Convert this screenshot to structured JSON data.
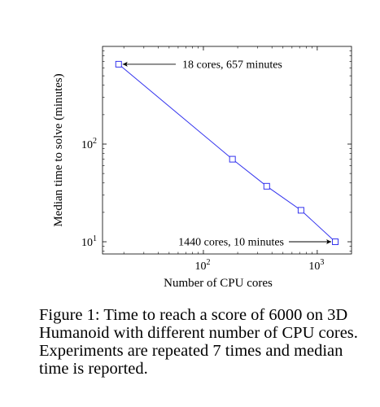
{
  "chart_data": {
    "type": "line",
    "xlabel": "Number of CPU cores",
    "ylabel": "Median time to solve (minutes)",
    "xscale": "log",
    "yscale": "log",
    "xlim": [
      13,
      2000
    ],
    "ylim": [
      7.5,
      1000
    ],
    "grid": false,
    "x_ticks": [
      {
        "value": 100,
        "base": "10",
        "exp": "2"
      },
      {
        "value": 1000,
        "base": "10",
        "exp": "3"
      }
    ],
    "y_ticks": [
      {
        "value": 10,
        "base": "10",
        "exp": "1"
      },
      {
        "value": 100,
        "base": "10",
        "exp": "2"
      }
    ],
    "series": [
      {
        "color": "#3333ee",
        "marker": "square",
        "points": [
          {
            "x": 18,
            "y": 657
          },
          {
            "x": 180,
            "y": 70
          },
          {
            "x": 360,
            "y": 37
          },
          {
            "x": 720,
            "y": 21
          },
          {
            "x": 1440,
            "y": 10
          }
        ]
      }
    ],
    "annotations": [
      {
        "text": "18 cores, 657 minutes",
        "x": 18,
        "y": 657,
        "side": "right"
      },
      {
        "text": "1440 cores, 10 minutes",
        "x": 1440,
        "y": 10,
        "side": "left"
      }
    ]
  },
  "caption": {
    "text": "Figure 1: Time to reach a score of 6000 on 3D Humanoid with different number of CPU cores. Experiments are repeated 7 times and median time is reported."
  }
}
